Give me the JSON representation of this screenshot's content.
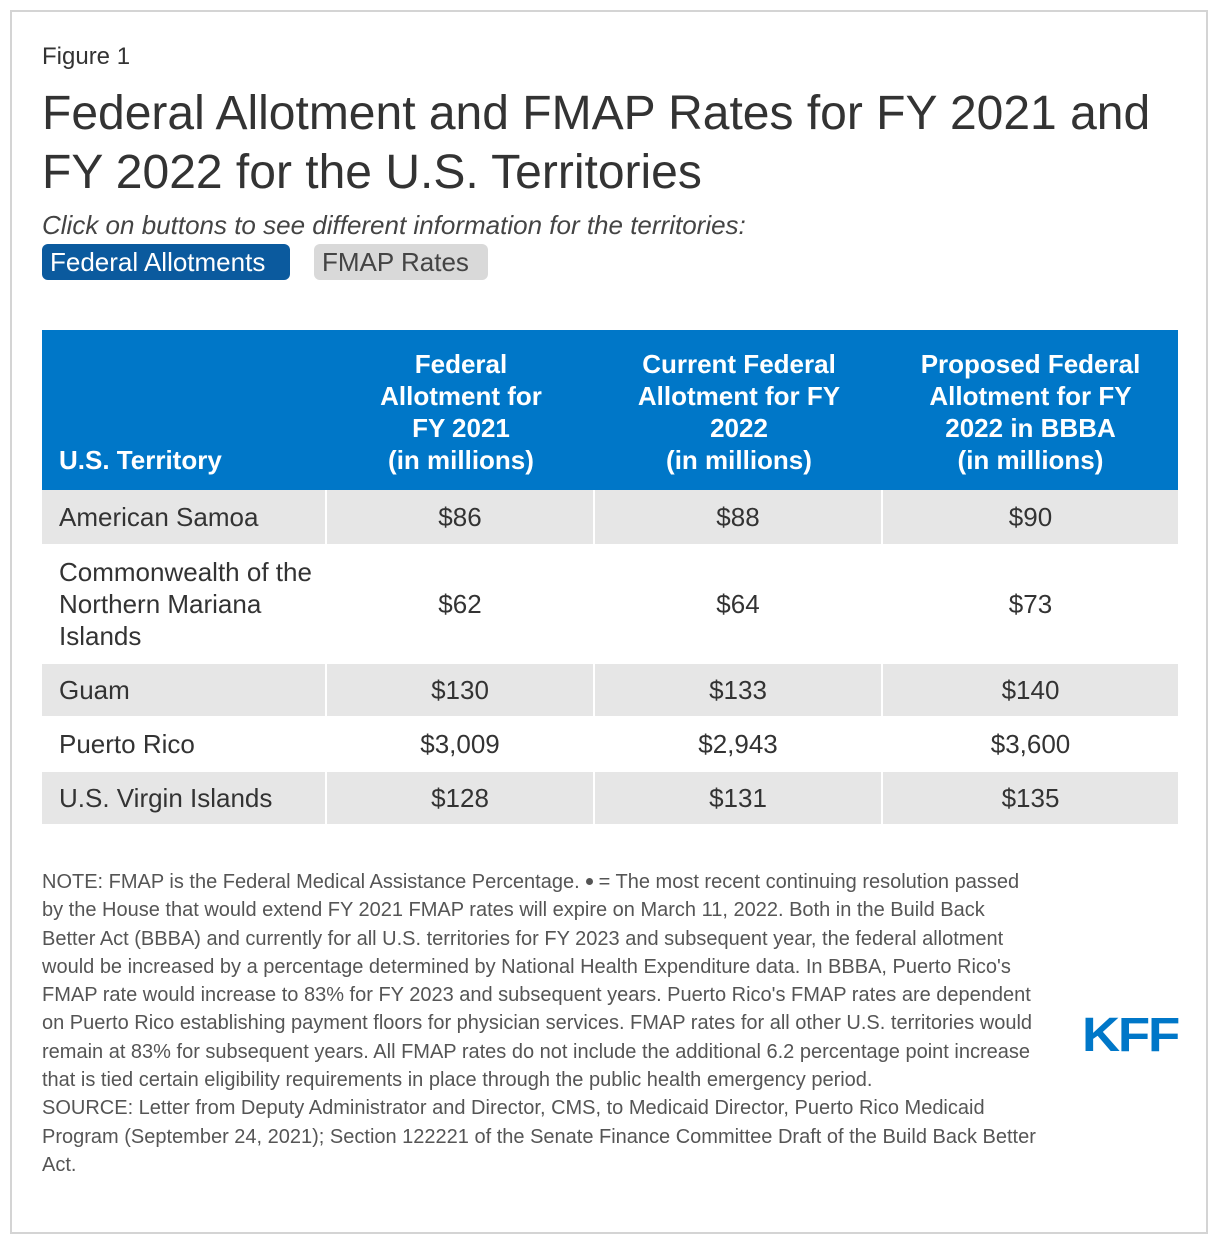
{
  "figure_label": "Figure 1",
  "title": "Federal Allotment and FMAP Rates for FY 2021 and FY 2022 for the U.S. Territories",
  "subtitle": "Click on buttons to see different information for the territories:",
  "buttons": {
    "federal_allotments": "Federal Allotments",
    "fmap_rates": "FMAP Rates"
  },
  "colors": {
    "header_blue": "#0077c8",
    "active_button": "#0b5a9e",
    "row_shade": "#e6e6e6"
  },
  "table": {
    "headers": [
      [
        "U.S. Territory"
      ],
      [
        "Federal",
        "Allotment for",
        "FY 2021",
        "(in millions)"
      ],
      [
        "Current Federal",
        "Allotment for FY",
        "2022",
        "(in millions)"
      ],
      [
        "Proposed Federal",
        "Allotment for FY",
        "2022 in BBBA",
        "(in millions)"
      ]
    ],
    "rows": [
      [
        "American Samoa",
        "$86",
        "$88",
        "$90"
      ],
      [
        "Commonwealth of the Northern Mariana Islands",
        "$62",
        "$64",
        "$73"
      ],
      [
        "Guam",
        "$130",
        "$133",
        "$140"
      ],
      [
        "Puerto Rico",
        "$3,009",
        "$2,943",
        "$3,600"
      ],
      [
        "U.S. Virgin Islands",
        "$128",
        "$131",
        "$135"
      ]
    ]
  },
  "notes": {
    "note_before_symbol": "NOTE: FMAP is the Federal Medical Assistance Percentage.",
    "note_after_symbol": "= The most recent continuing resolution passed by the House that would extend FY 2021 FMAP rates will expire on March 11, 2022. Both in the Build Back Better Act (BBBA) and currently for all U.S. territories for FY 2023 and subsequent year, the federal allotment would be increased by a percentage determined by National Health Expenditure data. In BBBA, Puerto Rico's FMAP rate would increase to 83% for FY 2023 and subsequent years. Puerto Rico's FMAP rates are dependent on Puerto Rico establishing payment floors for physician services. FMAP rates for all other U.S. territories would remain at 83% for subsequent years. All FMAP rates do not include the additional 6.2 percentage point increase that is tied certain eligibility requirements in place through the public health emergency period.",
    "source": "SOURCE: Letter from Deputy Administrator and Director, CMS, to Medicaid Director, Puerto Rico Medicaid Program (September 24, 2021); Section 122221 of the Senate Finance Committee Draft of the Build Back Better Act."
  },
  "logo_text": "KFF"
}
